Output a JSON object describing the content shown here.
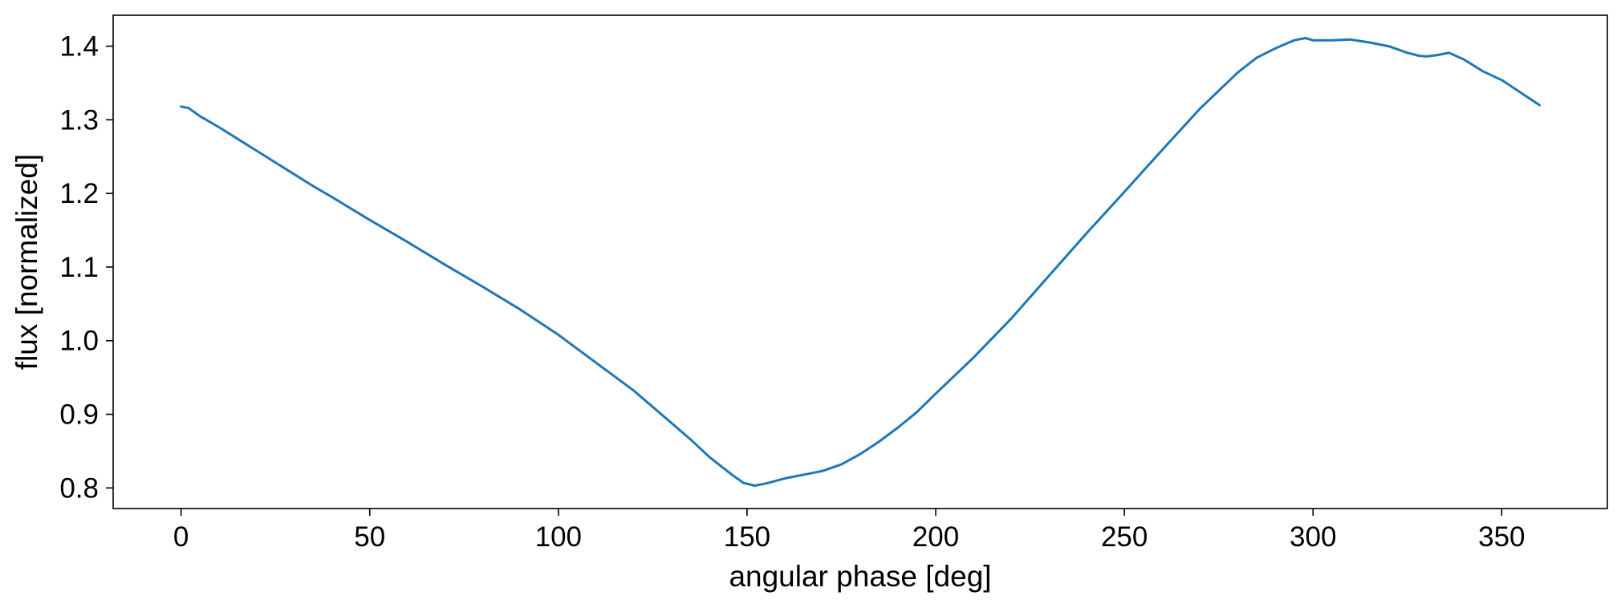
{
  "chart_data": {
    "type": "line",
    "title": "",
    "xlabel": "angular phase [deg]",
    "ylabel": "flux [normalized]",
    "xlim": [
      -18,
      378
    ],
    "ylim": [
      0.772,
      1.442
    ],
    "xticks": [
      {
        "value": 0,
        "label": "0"
      },
      {
        "value": 50,
        "label": "50"
      },
      {
        "value": 100,
        "label": "100"
      },
      {
        "value": 150,
        "label": "150"
      },
      {
        "value": 200,
        "label": "200"
      },
      {
        "value": 250,
        "label": "250"
      },
      {
        "value": 300,
        "label": "300"
      },
      {
        "value": 350,
        "label": "350"
      }
    ],
    "yticks": [
      {
        "value": 0.8,
        "label": "0.8"
      },
      {
        "value": 0.9,
        "label": "0.9"
      },
      {
        "value": 1.0,
        "label": "1.0"
      },
      {
        "value": 1.1,
        "label": "1.1"
      },
      {
        "value": 1.2,
        "label": "1.2"
      },
      {
        "value": 1.3,
        "label": "1.3"
      },
      {
        "value": 1.4,
        "label": "1.4"
      }
    ],
    "grid": false,
    "legend": "none",
    "series": [
      {
        "color": "#1f77b4",
        "x": [
          0,
          2,
          5,
          10,
          15,
          20,
          25,
          30,
          35,
          40,
          50,
          60,
          70,
          80,
          90,
          100,
          110,
          120,
          125,
          130,
          135,
          140,
          143,
          146,
          149,
          152,
          155,
          160,
          165,
          170,
          175,
          180,
          185,
          190,
          195,
          200,
          210,
          220,
          230,
          240,
          250,
          260,
          270,
          280,
          285,
          290,
          295,
          298,
          300,
          305,
          310,
          315,
          320,
          325,
          328,
          330,
          333,
          336,
          340,
          345,
          350,
          355,
          360
        ],
        "y": [
          1.318,
          1.316,
          1.305,
          1.29,
          1.274,
          1.258,
          1.242,
          1.226,
          1.21,
          1.195,
          1.164,
          1.134,
          1.103,
          1.073,
          1.042,
          1.008,
          0.97,
          0.932,
          0.91,
          0.888,
          0.866,
          0.842,
          0.83,
          0.818,
          0.807,
          0.803,
          0.806,
          0.813,
          0.818,
          0.823,
          0.832,
          0.846,
          0.863,
          0.882,
          0.903,
          0.928,
          0.977,
          1.03,
          1.088,
          1.146,
          1.202,
          1.259,
          1.315,
          1.364,
          1.384,
          1.397,
          1.408,
          1.411,
          1.408,
          1.408,
          1.409,
          1.405,
          1.4,
          1.391,
          1.387,
          1.386,
          1.388,
          1.391,
          1.382,
          1.366,
          1.354,
          1.337,
          1.32
        ]
      }
    ]
  }
}
